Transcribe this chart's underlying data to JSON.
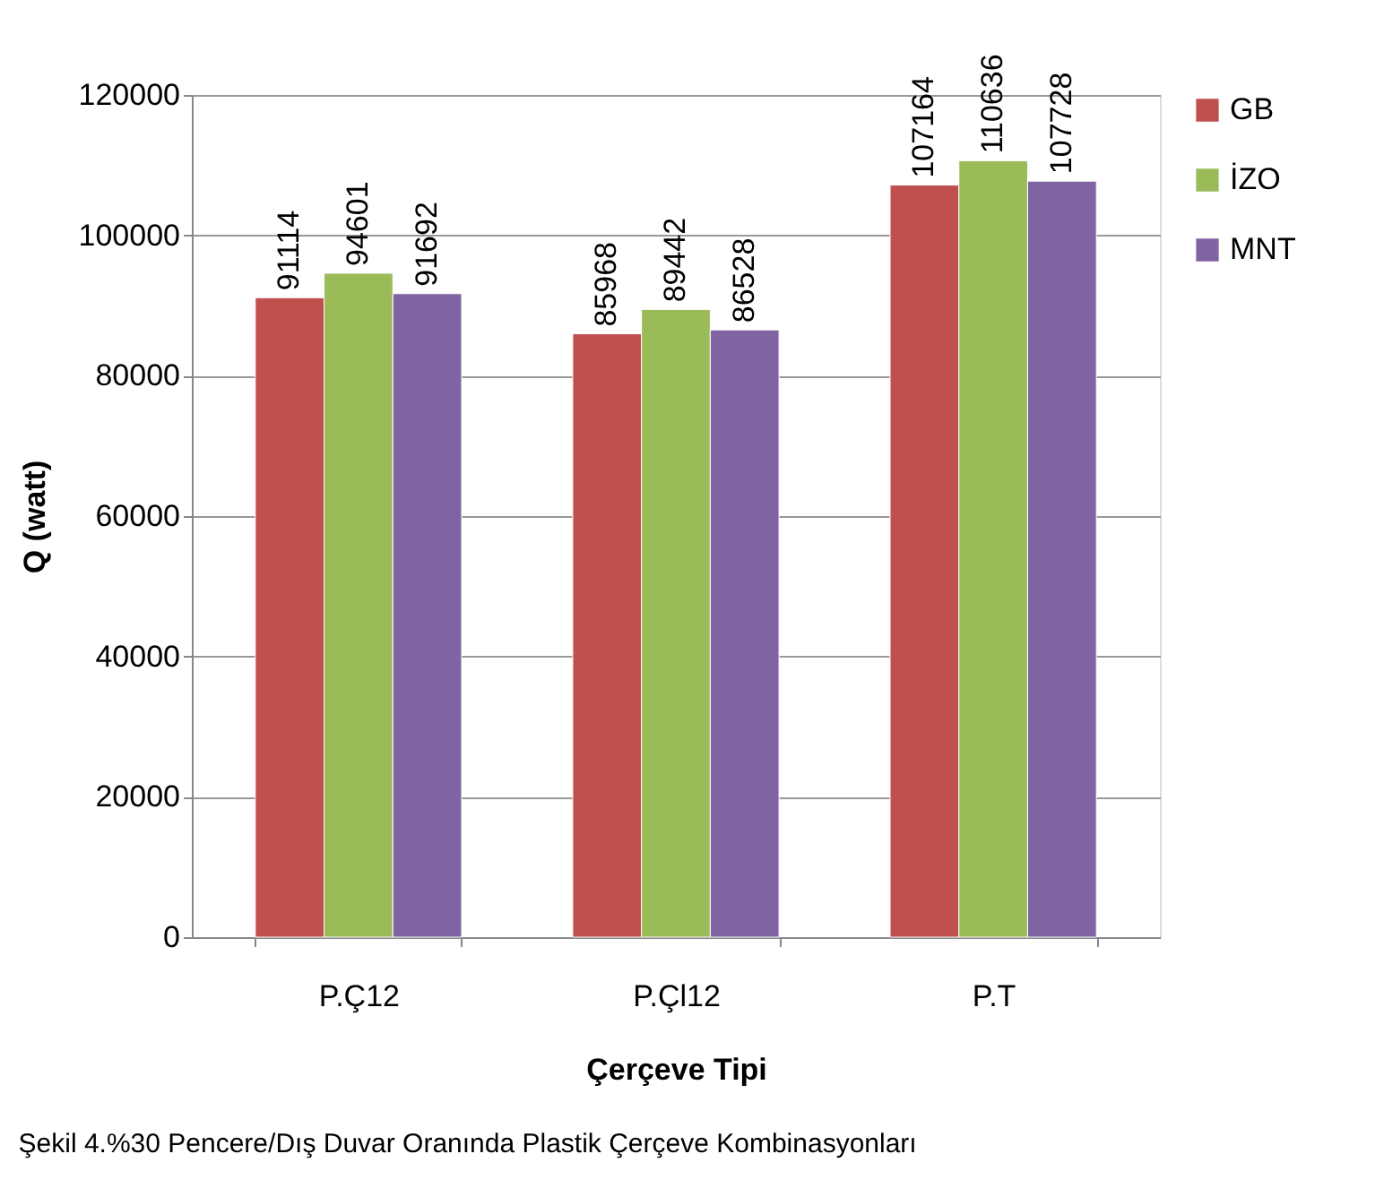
{
  "chart_data": {
    "type": "bar",
    "xlabel": "Çerçeve Tipi",
    "ylabel": "Q (watt)",
    "categories": [
      "P.Ç12",
      "P.Çl12",
      "P.T"
    ],
    "series": [
      {
        "name": "GB",
        "color": "#c0504d",
        "values": [
          91114,
          85968,
          107164
        ]
      },
      {
        "name": "İZO",
        "color": "#9bbb59",
        "values": [
          94601,
          89442,
          110636
        ]
      },
      {
        "name": "MNT",
        "color": "#8064a2",
        "values": [
          91692,
          86528,
          107728
        ]
      }
    ],
    "ylim": [
      0,
      120000
    ],
    "yticks": [
      0,
      20000,
      40000,
      60000,
      80000,
      100000,
      120000
    ],
    "grid": "y",
    "legend": "right",
    "data_labels": true,
    "annotations": [
      "Şekil 4.%30 Pencere/Dış Duvar Oranında Plastik Çerçeve Kombinasyonları"
    ]
  }
}
